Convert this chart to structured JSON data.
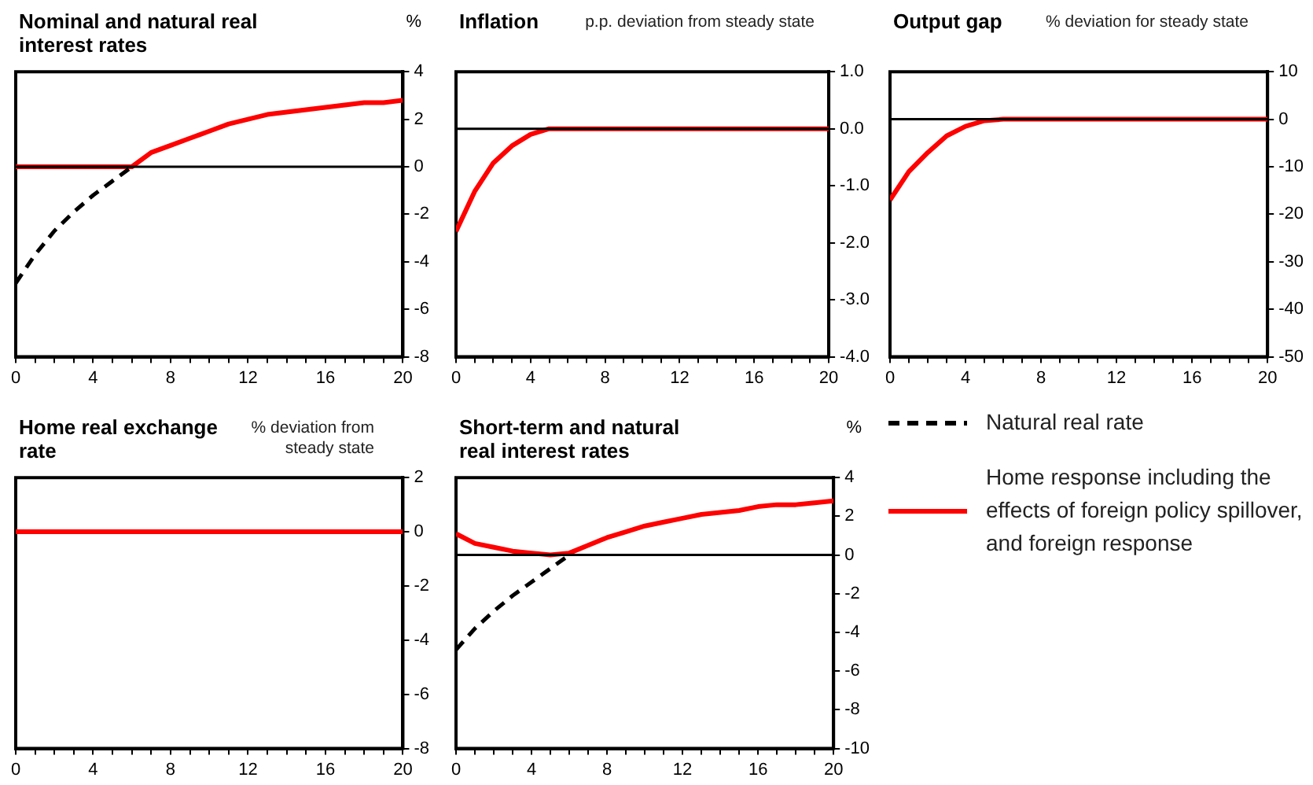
{
  "chart_data": [
    {
      "type": "line",
      "title": "Nominal and natural real interest rates",
      "ylabel": "%",
      "x": [
        0,
        1,
        2,
        3,
        4,
        5,
        6,
        7,
        8,
        9,
        10,
        11,
        12,
        13,
        14,
        15,
        16,
        17,
        18,
        19,
        20
      ],
      "xlim": [
        0,
        20
      ],
      "xticks": [
        0,
        {
          "value": 1,
          "label": null
        },
        {
          "value": 2,
          "label": null
        },
        {
          "value": 3,
          "label": null
        },
        4,
        {
          "value": 5,
          "label": null
        },
        {
          "value": 6,
          "label": null
        },
        {
          "value": 7,
          "label": null
        },
        8,
        {
          "value": 9,
          "label": null
        },
        {
          "value": 10,
          "label": null
        },
        {
          "value": 11,
          "label": null
        },
        12,
        {
          "value": 13,
          "label": null
        },
        {
          "value": 14,
          "label": null
        },
        {
          "value": 15,
          "label": null
        },
        16,
        {
          "value": 17,
          "label": null
        },
        {
          "value": 18,
          "label": null
        },
        {
          "value": 19,
          "label": null
        },
        20
      ],
      "ylim": [
        -8,
        4
      ],
      "yticks": [
        -8,
        -6,
        -4,
        -2,
        0,
        2,
        4
      ],
      "marker": "none",
      "series": [
        {
          "color": "#000000",
          "line_style": "dashed",
          "x": [
            0,
            1,
            2,
            3,
            4,
            5,
            6
          ],
          "values": [
            -4.9,
            -3.7,
            -2.7,
            -1.9,
            -1.2,
            -0.6,
            0
          ]
        },
        {
          "color": "#ff0000",
          "line_style": "solid",
          "values": [
            0,
            0,
            0,
            0,
            0,
            0,
            0,
            0.6,
            0.9,
            1.2,
            1.5,
            1.8,
            2.0,
            2.2,
            2.3,
            2.4,
            2.5,
            2.6,
            2.7,
            2.7,
            2.8
          ]
        }
      ],
      "ref_lines": [
        {
          "axis": "y",
          "value": 0,
          "color": "#000000"
        }
      ]
    },
    {
      "type": "line",
      "title": "Inflation",
      "subtitle": "p.p. deviation from steady state",
      "x": [
        0,
        1,
        2,
        3,
        4,
        5,
        6,
        7,
        8,
        9,
        10,
        11,
        12,
        13,
        14,
        15,
        16,
        17,
        18,
        19,
        20
      ],
      "xlim": [
        0,
        20
      ],
      "xticks": [
        0,
        {
          "value": 1,
          "label": null
        },
        {
          "value": 2,
          "label": null
        },
        {
          "value": 3,
          "label": null
        },
        4,
        {
          "value": 5,
          "label": null
        },
        {
          "value": 6,
          "label": null
        },
        {
          "value": 7,
          "label": null
        },
        8,
        {
          "value": 9,
          "label": null
        },
        {
          "value": 10,
          "label": null
        },
        {
          "value": 11,
          "label": null
        },
        12,
        {
          "value": 13,
          "label": null
        },
        {
          "value": 14,
          "label": null
        },
        {
          "value": 15,
          "label": null
        },
        16,
        {
          "value": 17,
          "label": null
        },
        {
          "value": 18,
          "label": null
        },
        {
          "value": 19,
          "label": null
        },
        20
      ],
      "ylim": [
        -4,
        1
      ],
      "yticks": [
        {
          "value": -4,
          "label": "-4.0"
        },
        {
          "value": -3,
          "label": "-3.0"
        },
        {
          "value": -2,
          "label": "-2.0"
        },
        {
          "value": -1,
          "label": "-1.0"
        },
        {
          "value": 0,
          "label": "0.0"
        },
        {
          "value": 1,
          "label": "1.0"
        }
      ],
      "marker": "none",
      "series": [
        {
          "color": "#ff0000",
          "line_style": "solid",
          "values": [
            -1.8,
            -1.1,
            -0.6,
            -0.3,
            -0.1,
            0,
            0,
            0,
            0,
            0,
            0,
            0,
            0,
            0,
            0,
            0,
            0,
            0,
            0,
            0,
            0
          ]
        }
      ],
      "ref_lines": [
        {
          "axis": "y",
          "value": 0,
          "color": "#000000"
        }
      ]
    },
    {
      "type": "line",
      "title": "Output gap",
      "subtitle": "% deviation for steady state",
      "x": [
        0,
        1,
        2,
        3,
        4,
        5,
        6,
        7,
        8,
        9,
        10,
        11,
        12,
        13,
        14,
        15,
        16,
        17,
        18,
        19,
        20
      ],
      "xlim": [
        0,
        20
      ],
      "xticks": [
        0,
        {
          "value": 1,
          "label": null
        },
        {
          "value": 2,
          "label": null
        },
        {
          "value": 3,
          "label": null
        },
        4,
        {
          "value": 5,
          "label": null
        },
        {
          "value": 6,
          "label": null
        },
        {
          "value": 7,
          "label": null
        },
        8,
        {
          "value": 9,
          "label": null
        },
        {
          "value": 10,
          "label": null
        },
        {
          "value": 11,
          "label": null
        },
        12,
        {
          "value": 13,
          "label": null
        },
        {
          "value": 14,
          "label": null
        },
        {
          "value": 15,
          "label": null
        },
        16,
        {
          "value": 17,
          "label": null
        },
        {
          "value": 18,
          "label": null
        },
        {
          "value": 19,
          "label": null
        },
        20
      ],
      "ylim": [
        -50,
        10
      ],
      "yticks": [
        -50,
        -40,
        -30,
        -20,
        -10,
        0,
        10
      ],
      "marker": "none",
      "series": [
        {
          "color": "#ff0000",
          "line_style": "solid",
          "values": [
            -17,
            -11,
            -7,
            -3.5,
            -1.5,
            -0.3,
            0,
            0,
            0,
            0,
            0,
            0,
            0,
            0,
            0,
            0,
            0,
            0,
            0,
            0,
            0
          ]
        }
      ],
      "ref_lines": [
        {
          "axis": "y",
          "value": 0,
          "color": "#000000"
        }
      ]
    },
    {
      "type": "line",
      "title": "Home real exchange rate",
      "subtitle": "% deviation from steady state",
      "x": [
        0,
        1,
        2,
        3,
        4,
        5,
        6,
        7,
        8,
        9,
        10,
        11,
        12,
        13,
        14,
        15,
        16,
        17,
        18,
        19,
        20
      ],
      "xlim": [
        0,
        20
      ],
      "xticks": [
        0,
        {
          "value": 1,
          "label": null
        },
        {
          "value": 2,
          "label": null
        },
        {
          "value": 3,
          "label": null
        },
        4,
        {
          "value": 5,
          "label": null
        },
        {
          "value": 6,
          "label": null
        },
        {
          "value": 7,
          "label": null
        },
        8,
        {
          "value": 9,
          "label": null
        },
        {
          "value": 10,
          "label": null
        },
        {
          "value": 11,
          "label": null
        },
        12,
        {
          "value": 13,
          "label": null
        },
        {
          "value": 14,
          "label": null
        },
        {
          "value": 15,
          "label": null
        },
        16,
        {
          "value": 17,
          "label": null
        },
        {
          "value": 18,
          "label": null
        },
        {
          "value": 19,
          "label": null
        },
        20
      ],
      "ylim": [
        -8,
        2
      ],
      "yticks": [
        -8,
        -6,
        -4,
        -2,
        0,
        2
      ],
      "marker": "none",
      "series": [
        {
          "color": "#ff0000",
          "line_style": "solid",
          "values": [
            0,
            0,
            0,
            0,
            0,
            0,
            0,
            0,
            0,
            0,
            0,
            0,
            0,
            0,
            0,
            0,
            0,
            0,
            0,
            0,
            0
          ]
        }
      ]
    },
    {
      "type": "line",
      "title": "Short-term and natural real interest rates",
      "ylabel": "%",
      "x": [
        0,
        1,
        2,
        3,
        4,
        5,
        6,
        7,
        8,
        9,
        10,
        11,
        12,
        13,
        14,
        15,
        16,
        17,
        18,
        19,
        20
      ],
      "xlim": [
        0,
        20
      ],
      "xticks": [
        0,
        {
          "value": 1,
          "label": null
        },
        {
          "value": 2,
          "label": null
        },
        {
          "value": 3,
          "label": null
        },
        4,
        {
          "value": 5,
          "label": null
        },
        {
          "value": 6,
          "label": null
        },
        {
          "value": 7,
          "label": null
        },
        8,
        {
          "value": 9,
          "label": null
        },
        {
          "value": 10,
          "label": null
        },
        {
          "value": 11,
          "label": null
        },
        12,
        {
          "value": 13,
          "label": null
        },
        {
          "value": 14,
          "label": null
        },
        {
          "value": 15,
          "label": null
        },
        16,
        {
          "value": 17,
          "label": null
        },
        {
          "value": 18,
          "label": null
        },
        {
          "value": 19,
          "label": null
        },
        20
      ],
      "ylim": [
        -10,
        4
      ],
      "yticks": [
        -10,
        -8,
        -6,
        -4,
        -2,
        0,
        2,
        4
      ],
      "marker": "none",
      "legend": "right",
      "series": [
        {
          "name": "Natural real rate",
          "color": "#000000",
          "line_style": "dashed",
          "x": [
            0,
            1,
            2,
            3,
            4,
            5,
            6
          ],
          "values": [
            -4.9,
            -3.8,
            -2.9,
            -2.1,
            -1.4,
            -0.7,
            0
          ]
        },
        {
          "name": "Home response including the effects of foreign policy spillover, and foreign response",
          "color": "#ff0000",
          "line_style": "solid",
          "values": [
            1.1,
            0.6,
            0.4,
            0.2,
            0.1,
            0,
            0.1,
            0.5,
            0.9,
            1.2,
            1.5,
            1.7,
            1.9,
            2.1,
            2.2,
            2.3,
            2.5,
            2.6,
            2.6,
            2.7,
            2.8
          ]
        }
      ],
      "ref_lines": [
        {
          "axis": "y",
          "value": 0,
          "color": "#000000"
        }
      ]
    }
  ]
}
